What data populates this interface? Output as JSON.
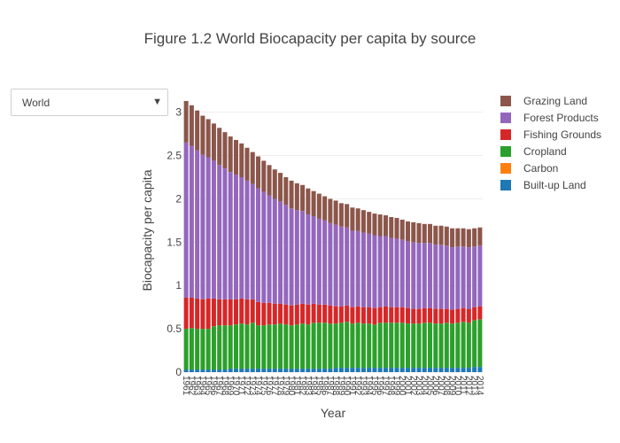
{
  "page": {
    "title": "Figure 1.2 World Biocapacity per capita by source"
  },
  "dropdown": {
    "selected": "World",
    "caret_icon": "triangle-down-icon"
  },
  "chart_data": {
    "type": "bar",
    "stacked": true,
    "title": "Figure 1.2 World Biocapacity per capita by source",
    "xlabel": "Year",
    "ylabel": "Biocapacity per capita",
    "ylim": [
      0,
      3.15
    ],
    "yticks": [
      0,
      0.5,
      1,
      1.5,
      2,
      2.5,
      3
    ],
    "ytick_labels": [
      "0",
      "0.5",
      "1",
      "1.5",
      "2",
      "2.5",
      "3"
    ],
    "grid": true,
    "legend_position": "right",
    "categories": [
      "1961",
      "1962",
      "1963",
      "1964",
      "1965",
      "1966",
      "1967",
      "1968",
      "1969",
      "1970",
      "1971",
      "1972",
      "1973",
      "1974",
      "1975",
      "1976",
      "1977",
      "1978",
      "1979",
      "1980",
      "1981",
      "1982",
      "1983",
      "1984",
      "1985",
      "1986",
      "1987",
      "1988",
      "1989",
      "1990",
      "1991",
      "1992",
      "1993",
      "1994",
      "1995",
      "1996",
      "1997",
      "1998",
      "1999",
      "2000",
      "2001",
      "2002",
      "2003",
      "2004",
      "2005",
      "2006",
      "2007",
      "2008",
      "2009",
      "2010",
      "2011",
      "2012",
      "2013",
      "2014"
    ],
    "series": [
      {
        "name": "Built-up Land",
        "color": "#1f77b4",
        "values": [
          0.03,
          0.03,
          0.03,
          0.03,
          0.03,
          0.03,
          0.03,
          0.03,
          0.04,
          0.04,
          0.04,
          0.04,
          0.04,
          0.04,
          0.04,
          0.04,
          0.04,
          0.04,
          0.04,
          0.04,
          0.04,
          0.04,
          0.04,
          0.04,
          0.04,
          0.04,
          0.04,
          0.05,
          0.05,
          0.05,
          0.05,
          0.05,
          0.05,
          0.05,
          0.05,
          0.05,
          0.05,
          0.05,
          0.05,
          0.05,
          0.05,
          0.05,
          0.05,
          0.05,
          0.05,
          0.05,
          0.05,
          0.05,
          0.05,
          0.05,
          0.05,
          0.05,
          0.06,
          0.06
        ]
      },
      {
        "name": "Carbon",
        "color": "#ff7f0e",
        "values": [
          0,
          0,
          0,
          0,
          0,
          0,
          0,
          0,
          0,
          0,
          0,
          0,
          0,
          0,
          0,
          0,
          0,
          0,
          0,
          0,
          0,
          0,
          0,
          0,
          0,
          0,
          0,
          0,
          0,
          0,
          0,
          0,
          0,
          0,
          0,
          0,
          0,
          0,
          0,
          0,
          0,
          0,
          0,
          0,
          0,
          0,
          0,
          0,
          0,
          0,
          0,
          0,
          0,
          0
        ]
      },
      {
        "name": "Cropland",
        "color": "#2ca02c",
        "values": [
          0.47,
          0.48,
          0.47,
          0.47,
          0.47,
          0.5,
          0.51,
          0.51,
          0.5,
          0.51,
          0.52,
          0.51,
          0.53,
          0.5,
          0.5,
          0.51,
          0.51,
          0.52,
          0.51,
          0.5,
          0.51,
          0.52,
          0.51,
          0.53,
          0.53,
          0.53,
          0.52,
          0.51,
          0.52,
          0.53,
          0.51,
          0.52,
          0.51,
          0.51,
          0.5,
          0.52,
          0.52,
          0.52,
          0.52,
          0.52,
          0.51,
          0.51,
          0.51,
          0.52,
          0.52,
          0.51,
          0.51,
          0.52,
          0.51,
          0.52,
          0.53,
          0.52,
          0.54,
          0.55
        ]
      },
      {
        "name": "Fishing Grounds",
        "color": "#d62728",
        "values": [
          0.36,
          0.35,
          0.35,
          0.34,
          0.35,
          0.32,
          0.3,
          0.3,
          0.3,
          0.29,
          0.29,
          0.29,
          0.27,
          0.27,
          0.26,
          0.25,
          0.24,
          0.23,
          0.23,
          0.23,
          0.23,
          0.23,
          0.23,
          0.22,
          0.21,
          0.21,
          0.21,
          0.2,
          0.19,
          0.19,
          0.19,
          0.19,
          0.19,
          0.19,
          0.19,
          0.18,
          0.19,
          0.18,
          0.18,
          0.18,
          0.18,
          0.17,
          0.17,
          0.17,
          0.17,
          0.17,
          0.17,
          0.16,
          0.16,
          0.16,
          0.16,
          0.16,
          0.15,
          0.15
        ]
      },
      {
        "name": "Forest Products",
        "color": "#9467bd",
        "values": [
          1.79,
          1.75,
          1.71,
          1.67,
          1.63,
          1.59,
          1.55,
          1.51,
          1.47,
          1.44,
          1.4,
          1.37,
          1.33,
          1.31,
          1.28,
          1.24,
          1.21,
          1.18,
          1.15,
          1.12,
          1.09,
          1.07,
          1.04,
          1.01,
          0.99,
          0.97,
          0.95,
          0.94,
          0.92,
          0.9,
          0.88,
          0.87,
          0.86,
          0.85,
          0.84,
          0.82,
          0.81,
          0.8,
          0.79,
          0.78,
          0.77,
          0.77,
          0.76,
          0.75,
          0.75,
          0.74,
          0.74,
          0.73,
          0.72,
          0.72,
          0.71,
          0.71,
          0.7,
          0.7
        ]
      },
      {
        "name": "Grazing Land",
        "color": "#8c564b",
        "values": [
          0.48,
          0.47,
          0.46,
          0.45,
          0.44,
          0.43,
          0.43,
          0.42,
          0.41,
          0.4,
          0.39,
          0.38,
          0.37,
          0.37,
          0.36,
          0.35,
          0.34,
          0.33,
          0.32,
          0.32,
          0.31,
          0.3,
          0.3,
          0.29,
          0.29,
          0.28,
          0.28,
          0.28,
          0.27,
          0.27,
          0.27,
          0.26,
          0.26,
          0.25,
          0.25,
          0.25,
          0.24,
          0.24,
          0.24,
          0.23,
          0.23,
          0.23,
          0.23,
          0.22,
          0.22,
          0.22,
          0.22,
          0.22,
          0.22,
          0.21,
          0.21,
          0.21,
          0.21,
          0.21
        ]
      }
    ],
    "legend_order": [
      "Grazing Land",
      "Forest Products",
      "Fishing Grounds",
      "Cropland",
      "Carbon",
      "Built-up Land"
    ]
  }
}
